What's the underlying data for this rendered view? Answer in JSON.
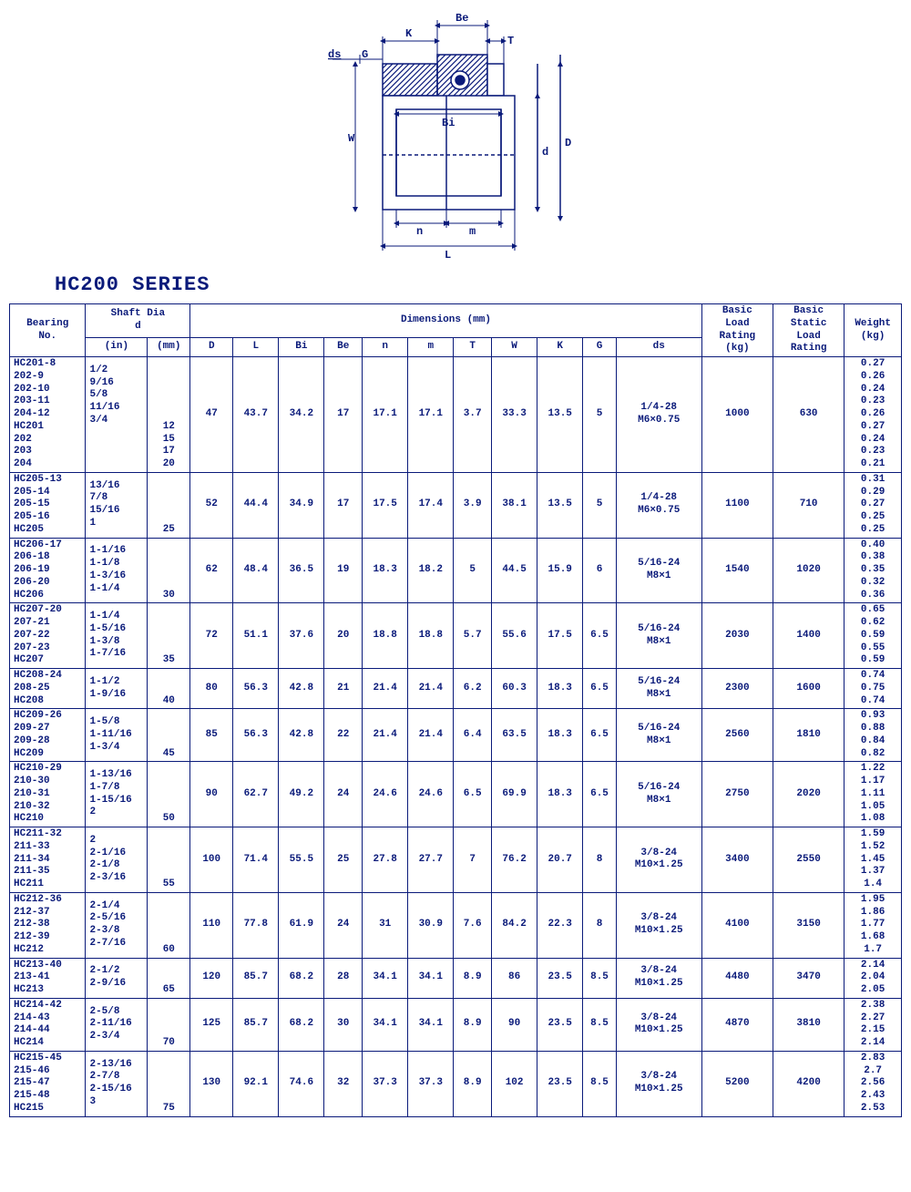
{
  "title": "HC200 SERIES",
  "colors": {
    "ink": "#0a1a7a",
    "bg": "#ffffff"
  },
  "diagram_labels": {
    "ds": "ds",
    "G": "G",
    "K": "K",
    "Be": "Be",
    "T": "T",
    "Bi": "Bi",
    "W": "W",
    "d": "d",
    "D": "D",
    "n": "n",
    "m": "m",
    "L": "L"
  },
  "headers": {
    "bearing_no": "Bearing\nNo.",
    "shaft_dia": "Shaft Dia\nd",
    "in": "(in)",
    "mm": "(mm)",
    "dimensions": "Dimensions   (mm)",
    "D": "D",
    "L": "L",
    "Bi": "Bi",
    "Be": "Be",
    "n": "n",
    "m": "m",
    "T": "T",
    "W": "W",
    "K": "K",
    "G": "G",
    "ds": "ds",
    "basic_load": "Basic\nLoad\nRating\n(kg)",
    "basic_static": "Basic\nStatic\nLoad\nRating",
    "weight": "Weight\n(kg)"
  },
  "groups": [
    {
      "nos": "HC201-8\n202-9\n202-10\n203-11\n204-12\nHC201\n202\n203\n204",
      "in": "1/2\n9/16\n5/8\n11/16\n3/4\n\n\n\n",
      "mm": "\n\n\n\n\n12\n15\n17\n20",
      "D": "47",
      "L": "43.7",
      "Bi": "34.2",
      "Be": "17",
      "n": "17.1",
      "m": "17.1",
      "T": "3.7",
      "W": "33.3",
      "K": "13.5",
      "G": "5",
      "ds": "1/4-28\nM6×0.75",
      "blr": "1000",
      "bslr": "630",
      "wt": "0.27\n0.26\n0.24\n0.23\n0.26\n0.27\n0.24\n0.23\n0.21"
    },
    {
      "nos": "HC205-13\n205-14\n205-15\n205-16\nHC205",
      "in": "13/16\n7/8\n15/16\n1\n",
      "mm": "\n\n\n\n25",
      "D": "52",
      "L": "44.4",
      "Bi": "34.9",
      "Be": "17",
      "n": "17.5",
      "m": "17.4",
      "T": "3.9",
      "W": "38.1",
      "K": "13.5",
      "G": "5",
      "ds": "1/4-28\nM6×0.75",
      "blr": "1100",
      "bslr": "710",
      "wt": "0.31\n0.29\n0.27\n0.25\n0.25"
    },
    {
      "nos": "HC206-17\n206-18\n206-19\n206-20\nHC206",
      "in": "1-1/16\n1-1/8\n1-3/16\n1-1/4\n",
      "mm": "\n\n\n\n30",
      "D": "62",
      "L": "48.4",
      "Bi": "36.5",
      "Be": "19",
      "n": "18.3",
      "m": "18.2",
      "T": "5",
      "W": "44.5",
      "K": "15.9",
      "G": "6",
      "ds": "5/16-24\nM8×1",
      "blr": "1540",
      "bslr": "1020",
      "wt": "0.40\n0.38\n0.35\n0.32\n0.36"
    },
    {
      "nos": "HC207-20\n207-21\n207-22\n207-23\nHC207",
      "in": "1-1/4\n1-5/16\n1-3/8\n1-7/16\n",
      "mm": "\n\n\n\n35",
      "D": "72",
      "L": "51.1",
      "Bi": "37.6",
      "Be": "20",
      "n": "18.8",
      "m": "18.8",
      "T": "5.7",
      "W": "55.6",
      "K": "17.5",
      "G": "6.5",
      "ds": "5/16-24\nM8×1",
      "blr": "2030",
      "bslr": "1400",
      "wt": "0.65\n0.62\n0.59\n0.55\n0.59"
    },
    {
      "nos": "HC208-24\n208-25\nHC208",
      "in": "1-1/2\n1-9/16\n",
      "mm": "\n\n40",
      "D": "80",
      "L": "56.3",
      "Bi": "42.8",
      "Be": "21",
      "n": "21.4",
      "m": "21.4",
      "T": "6.2",
      "W": "60.3",
      "K": "18.3",
      "G": "6.5",
      "ds": "5/16-24\nM8×1",
      "blr": "2300",
      "bslr": "1600",
      "wt": "0.74\n0.75\n0.74"
    },
    {
      "nos": "HC209-26\n209-27\n209-28\nHC209",
      "in": "1-5/8\n1-11/16\n1-3/4\n",
      "mm": "\n\n\n45",
      "D": "85",
      "L": "56.3",
      "Bi": "42.8",
      "Be": "22",
      "n": "21.4",
      "m": "21.4",
      "T": "6.4",
      "W": "63.5",
      "K": "18.3",
      "G": "6.5",
      "ds": "5/16-24\nM8×1",
      "blr": "2560",
      "bslr": "1810",
      "wt": "0.93\n0.88\n0.84\n0.82"
    },
    {
      "nos": "HC210-29\n210-30\n210-31\n210-32\nHC210",
      "in": "1-13/16\n1-7/8\n1-15/16\n2\n",
      "mm": "\n\n\n\n50",
      "D": "90",
      "L": "62.7",
      "Bi": "49.2",
      "Be": "24",
      "n": "24.6",
      "m": "24.6",
      "T": "6.5",
      "W": "69.9",
      "K": "18.3",
      "G": "6.5",
      "ds": "5/16-24\nM8×1",
      "blr": "2750",
      "bslr": "2020",
      "wt": "1.22\n1.17\n1.11\n1.05\n1.08"
    },
    {
      "nos": "HC211-32\n211-33\n211-34\n211-35\nHC211",
      "in": "2\n2-1/16\n2-1/8\n2-3/16\n",
      "mm": "\n\n\n\n55",
      "D": "100",
      "L": "71.4",
      "Bi": "55.5",
      "Be": "25",
      "n": "27.8",
      "m": "27.7",
      "T": "7",
      "W": "76.2",
      "K": "20.7",
      "G": "8",
      "ds": "3/8-24\nM10×1.25",
      "blr": "3400",
      "bslr": "2550",
      "wt": "1.59\n1.52\n1.45\n1.37\n1.4"
    },
    {
      "nos": "HC212-36\n212-37\n212-38\n212-39\nHC212",
      "in": "2-1/4\n2-5/16\n2-3/8\n2-7/16\n",
      "mm": "\n\n\n\n60",
      "D": "110",
      "L": "77.8",
      "Bi": "61.9",
      "Be": "24",
      "n": "31",
      "m": "30.9",
      "T": "7.6",
      "W": "84.2",
      "K": "22.3",
      "G": "8",
      "ds": "3/8-24\nM10×1.25",
      "blr": "4100",
      "bslr": "3150",
      "wt": "1.95\n1.86\n1.77\n1.68\n1.7"
    },
    {
      "nos": "HC213-40\n213-41\nHC213",
      "in": "2-1/2\n2-9/16\n",
      "mm": "\n\n65",
      "D": "120",
      "L": "85.7",
      "Bi": "68.2",
      "Be": "28",
      "n": "34.1",
      "m": "34.1",
      "T": "8.9",
      "W": "86",
      "K": "23.5",
      "G": "8.5",
      "ds": "3/8-24\nM10×1.25",
      "blr": "4480",
      "bslr": "3470",
      "wt": "2.14\n2.04\n2.05"
    },
    {
      "nos": "HC214-42\n214-43\n214-44\nHC214",
      "in": "2-5/8\n2-11/16\n2-3/4\n",
      "mm": "\n\n\n70",
      "D": "125",
      "L": "85.7",
      "Bi": "68.2",
      "Be": "30",
      "n": "34.1",
      "m": "34.1",
      "T": "8.9",
      "W": "90",
      "K": "23.5",
      "G": "8.5",
      "ds": "3/8-24\nM10×1.25",
      "blr": "4870",
      "bslr": "3810",
      "wt": "2.38\n2.27\n2.15\n2.14"
    },
    {
      "nos": "HC215-45\n215-46\n215-47\n215-48\nHC215",
      "in": "2-13/16\n2-7/8\n2-15/16\n3\n",
      "mm": "\n\n\n\n75",
      "D": "130",
      "L": "92.1",
      "Bi": "74.6",
      "Be": "32",
      "n": "37.3",
      "m": "37.3",
      "T": "8.9",
      "W": "102",
      "K": "23.5",
      "G": "8.5",
      "ds": "3/8-24\nM10×1.25",
      "blr": "5200",
      "bslr": "4200",
      "wt": "2.83\n2.7\n2.56\n2.43\n2.53"
    }
  ]
}
